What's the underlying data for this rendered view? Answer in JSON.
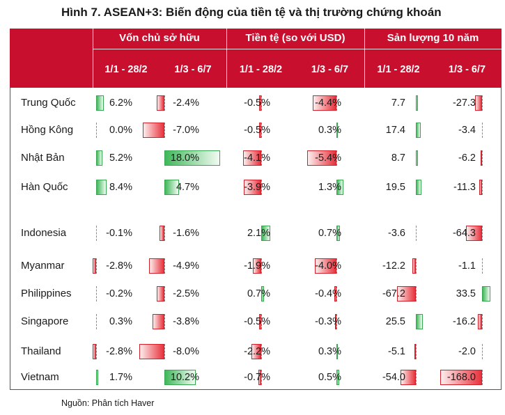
{
  "title": "Hình 7. ASEAN+3: Biến động của tiền tệ và thị trường chứng khoán",
  "source": "Nguồn: Phân tích Haver",
  "colors": {
    "header": "#c8102e",
    "positive": "#3fb85a",
    "negative": "#e8323c"
  },
  "chart_data": {
    "type": "table",
    "groups": [
      "Vốn chủ sở hữu",
      "Tiền tệ (so với USD)",
      "Sản lượng 10 năm"
    ],
    "subheaders": [
      "1/1 - 28/2",
      "1/3 - 6/7",
      "1/1 - 28/2",
      "1/3 - 6/7",
      "1/1 - 28/2",
      "1/3 - 6/7"
    ],
    "rows": [
      {
        "label": "Trung Quốc",
        "display": [
          "6.2%",
          "-2.4%",
          "-0.5%",
          "-4.4%",
          "7.7",
          "-27.3"
        ],
        "values": [
          6.2,
          -2.4,
          -0.5,
          -4.4,
          7.7,
          -27.3
        ]
      },
      {
        "label": "Hồng Kông",
        "display": [
          "0.0%",
          "-7.0%",
          "-0.5%",
          "0.3%",
          "17.4",
          "-3.4"
        ],
        "values": [
          0.0,
          -7.0,
          -0.5,
          0.3,
          17.4,
          -3.4
        ]
      },
      {
        "label": "Nhật Bản",
        "display": [
          "5.2%",
          "18.0%",
          "-4.1%",
          "-5.4%",
          "8.7",
          "-6.2"
        ],
        "values": [
          5.2,
          18.0,
          -4.1,
          -5.4,
          8.7,
          -6.2
        ]
      },
      {
        "label": "Hàn Quốc",
        "display": [
          "8.4%",
          "4.7%",
          "-3.9%",
          "1.3%",
          "19.5",
          "-11.3"
        ],
        "values": [
          8.4,
          4.7,
          -3.9,
          1.3,
          19.5,
          -11.3
        ]
      },
      {
        "label": "Indonesia",
        "display": [
          "-0.1%",
          "-1.6%",
          "2.1%",
          "0.7%",
          "-3.6",
          "-64.3"
        ],
        "values": [
          -0.1,
          -1.6,
          2.1,
          0.7,
          -3.6,
          -64.3
        ]
      },
      {
        "label": "Myanmar",
        "display": [
          "-2.8%",
          "-4.9%",
          "-1.9%",
          "-4.0%",
          "-12.2",
          "-1.1"
        ],
        "values": [
          -2.8,
          -4.9,
          -1.9,
          -4.0,
          -12.2,
          -1.1
        ]
      },
      {
        "label": "Philippines",
        "display": [
          "-0.2%",
          "-2.5%",
          "0.7%",
          "-0.4%",
          "-67.2",
          "33.5"
        ],
        "values": [
          -0.2,
          -2.5,
          0.7,
          -0.4,
          -67.2,
          33.5
        ]
      },
      {
        "label": "Singapore",
        "display": [
          "0.3%",
          "-3.8%",
          "-0.5%",
          "-0.3%",
          "25.5",
          "-16.2"
        ],
        "values": [
          0.3,
          -3.8,
          -0.5,
          -0.3,
          25.5,
          -16.2
        ]
      },
      {
        "label": "Thailand",
        "display": [
          "-2.8%",
          "-8.0%",
          "-2.2%",
          "0.3%",
          "-5.1",
          "-2.0"
        ],
        "values": [
          -2.8,
          -8.0,
          -2.2,
          0.3,
          -5.1,
          -2.0
        ]
      },
      {
        "label": "Vietnam",
        "display": [
          "1.7%",
          "10.2%",
          "-0.7%",
          "0.5%",
          "-54.0",
          "-168.0"
        ],
        "values": [
          1.7,
          10.2,
          -0.7,
          0.5,
          -54.0,
          -168.0
        ]
      }
    ]
  }
}
